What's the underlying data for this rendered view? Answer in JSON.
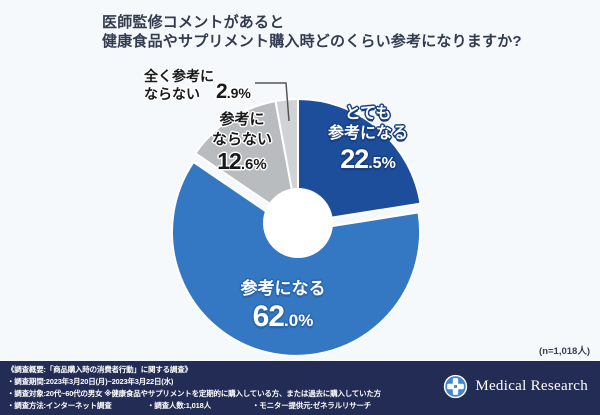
{
  "title": {
    "line1": "医師監修コメントがあると",
    "line2": "健康食品やサプリメント購入時どのくらい参考になりますか?"
  },
  "n_label": "(n=1,018人)",
  "chart_data": {
    "type": "pie",
    "donut": true,
    "start_angle_deg": 0,
    "direction": "clockwise",
    "title": "医師監修コメントがあると健康食品やサプリメント購入時どのくらい参考になりますか?",
    "n": "1,018人",
    "slices": [
      {
        "label": "とても参考になる",
        "value": 22.5,
        "color": "#1d4e9b",
        "explode": 0
      },
      {
        "label": "参考になる",
        "value": 62.0,
        "color": "#3478c4",
        "explode": 9
      },
      {
        "label": "参考にならない",
        "value": 12.6,
        "color": "#b9bcbf",
        "explode": 0
      },
      {
        "label": "全く参考にならない",
        "value": 2.9,
        "color": "#d0d3d6",
        "explode": 0
      }
    ]
  },
  "labels": {
    "totemo": {
      "line1": "とても",
      "line2": "参考になる",
      "pct_int": "22",
      "pct_rest": ".5%"
    },
    "sanko": {
      "line1": "参考になる",
      "pct_int": "62",
      "pct_rest": ".0%"
    },
    "naranai": {
      "line1": "参考に",
      "line2": "ならない",
      "pct_int": "12",
      "pct_rest": ".6%"
    },
    "mattaku": {
      "line1": "全く参考に",
      "line2": "ならない",
      "pct_int": "2",
      "pct_rest": ".9%"
    }
  },
  "footer": {
    "line1": "《調査概要:「商品購入時の消費者行動」に関する調査》",
    "line2": "・調査期間:2023年3月20日(月)~2023年3月22日(水)",
    "line3": "・調査対象:20代~60代の男女 ※健康食品やサプリメントを定期的に購入している方、または過去に購入していた方",
    "line4a": "・調査方法:インターネット調査",
    "line4b": "・調査人数:1,018人",
    "line4c": "・モニター提供元:ゼネラルリサーチ",
    "logo_text": "Medical Research"
  },
  "colors": {
    "background": "#f6f9fc",
    "title_text": "#333b4f",
    "footer_bg": "#232c55",
    "slice_dark_blue": "#1d4e9b",
    "slice_mid_blue": "#3478c4",
    "slice_gray": "#b9bcbf",
    "slice_light_gray": "#d0d3d6",
    "donut_hole": "#ffffff",
    "leader_line": "#555555"
  }
}
